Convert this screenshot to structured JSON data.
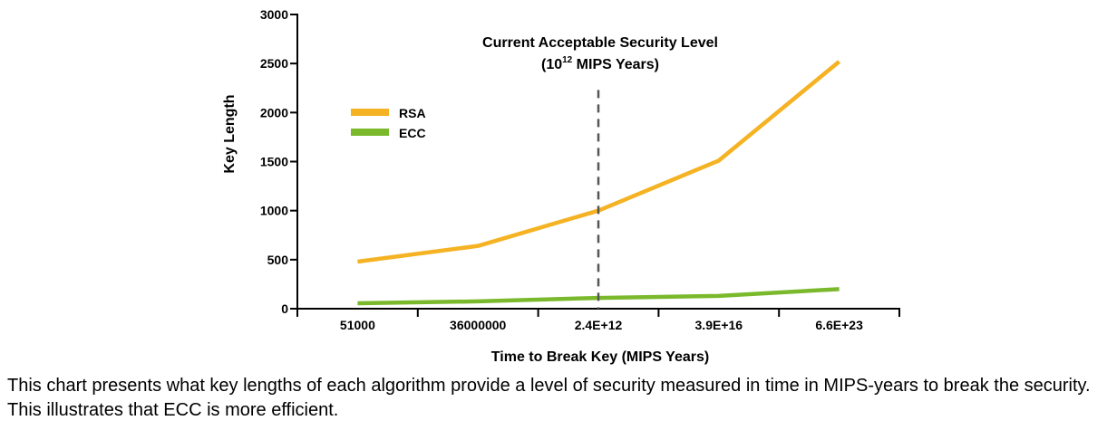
{
  "chart_data": {
    "type": "line",
    "categories": [
      "51000",
      "36000000",
      "2.4E+12",
      "3.9E+16",
      "6.6E+23"
    ],
    "series": [
      {
        "name": "RSA",
        "color": "#f5b222",
        "values": [
          480,
          640,
          1000,
          1510,
          2520
        ]
      },
      {
        "name": "ECC",
        "color": "#7ab92c",
        "values": [
          55,
          75,
          110,
          130,
          200
        ]
      }
    ],
    "xlabel": "Time to Break Key (MIPS Years)",
    "ylabel": "Key Length",
    "ylim": [
      0,
      3000
    ],
    "yticks": [
      0,
      500,
      1000,
      1500,
      2000,
      2500,
      3000
    ],
    "ytick_labels": [
      "0",
      "500",
      "1000",
      "1500",
      "2000",
      "2500",
      "3000"
    ],
    "grid": false,
    "legend_position": "top-left",
    "annotation": {
      "line1": "Current Acceptable Security Level",
      "line2_base": "10",
      "line2_exp": "12",
      "line2_rest": " MIPS Years",
      "marker_between": [
        "2.4E+12"
      ],
      "line_style": "dashed"
    }
  },
  "caption": "This chart presents what key lengths of each algorithm provide a level of security measured in time in MIPS-years to break the security. This illustrates that ECC is more efficient."
}
